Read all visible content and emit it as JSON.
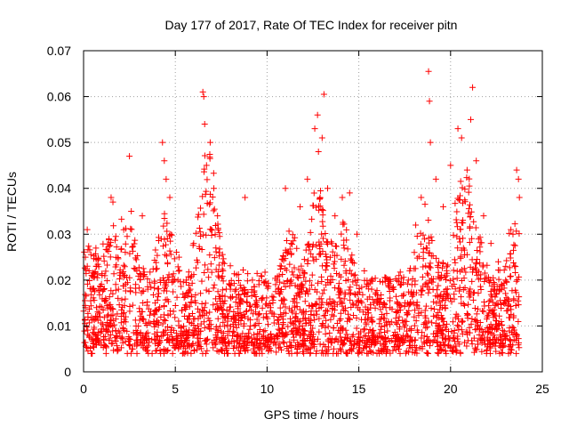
{
  "chart_data": {
    "type": "scatter",
    "title": "Day 177 of 2017, Rate Of TEC Index for receiver pitn",
    "xlabel": "GPS time / hours",
    "ylabel": "ROTI / TECUs",
    "xlim": [
      0,
      25
    ],
    "ylim": [
      0,
      0.07
    ],
    "x_ticks": [
      0,
      5,
      10,
      15,
      20,
      25
    ],
    "y_ticks": [
      0,
      0.01,
      0.02,
      0.03,
      0.04,
      0.05,
      0.06,
      0.07
    ],
    "x_tick_labels": [
      "0",
      "5",
      "10",
      "15",
      "20",
      "25"
    ],
    "y_tick_labels": [
      "0",
      "0.01",
      "0.02",
      "0.03",
      "0.04",
      "0.05",
      "0.06",
      "0.07"
    ],
    "grid": true,
    "marker": "plus",
    "marker_color": "#ff0000",
    "series": [
      {
        "name": "ROTI",
        "points": [
          [
            0.1,
            0.025
          ],
          [
            0.2,
            0.031
          ],
          [
            0.3,
            0.022
          ],
          [
            0.5,
            0.018
          ],
          [
            0.7,
            0.014
          ],
          [
            0.9,
            0.012
          ],
          [
            1.2,
            0.016
          ],
          [
            1.5,
            0.038
          ],
          [
            1.6,
            0.037
          ],
          [
            1.9,
            0.018
          ],
          [
            2.3,
            0.012
          ],
          [
            2.5,
            0.047
          ],
          [
            2.6,
            0.035
          ],
          [
            2.9,
            0.022
          ],
          [
            3.2,
            0.034
          ],
          [
            3.5,
            0.018
          ],
          [
            3.9,
            0.015
          ],
          [
            4.3,
            0.05
          ],
          [
            4.4,
            0.046
          ],
          [
            4.5,
            0.042
          ],
          [
            4.7,
            0.038
          ],
          [
            5.2,
            0.025
          ],
          [
            5.6,
            0.02
          ],
          [
            6.0,
            0.028
          ],
          [
            6.5,
            0.061
          ],
          [
            6.55,
            0.06
          ],
          [
            6.6,
            0.054
          ],
          [
            6.7,
            0.045
          ],
          [
            6.9,
            0.05
          ],
          [
            7.1,
            0.04
          ],
          [
            7.3,
            0.034
          ],
          [
            7.6,
            0.022
          ],
          [
            8.0,
            0.018
          ],
          [
            8.5,
            0.015
          ],
          [
            8.8,
            0.038
          ],
          [
            9.2,
            0.02
          ],
          [
            9.7,
            0.016
          ],
          [
            10.2,
            0.014
          ],
          [
            10.6,
            0.018
          ],
          [
            11.0,
            0.04
          ],
          [
            11.3,
            0.028
          ],
          [
            11.8,
            0.036
          ],
          [
            12.2,
            0.042
          ],
          [
            12.6,
            0.053
          ],
          [
            12.75,
            0.056
          ],
          [
            12.8,
            0.048
          ],
          [
            13.0,
            0.051
          ],
          [
            13.1,
            0.0605
          ],
          [
            13.3,
            0.04
          ],
          [
            13.7,
            0.034
          ],
          [
            14.1,
            0.038
          ],
          [
            14.5,
            0.039
          ],
          [
            14.9,
            0.03
          ],
          [
            15.3,
            0.022
          ],
          [
            15.7,
            0.018
          ],
          [
            16.2,
            0.016
          ],
          [
            16.7,
            0.014
          ],
          [
            17.2,
            0.012
          ],
          [
            17.7,
            0.02
          ],
          [
            18.1,
            0.032
          ],
          [
            18.4,
            0.038
          ],
          [
            18.8,
            0.0655
          ],
          [
            18.85,
            0.059
          ],
          [
            18.9,
            0.05
          ],
          [
            19.2,
            0.042
          ],
          [
            19.6,
            0.036
          ],
          [
            20.0,
            0.045
          ],
          [
            20.4,
            0.053
          ],
          [
            20.6,
            0.051
          ],
          [
            20.9,
            0.044
          ],
          [
            21.1,
            0.055
          ],
          [
            21.2,
            0.062
          ],
          [
            21.4,
            0.046
          ],
          [
            21.8,
            0.034
          ],
          [
            22.2,
            0.028
          ],
          [
            22.6,
            0.024
          ],
          [
            23.0,
            0.02
          ],
          [
            23.4,
            0.03
          ],
          [
            23.6,
            0.044
          ],
          [
            23.7,
            0.042
          ],
          [
            23.75,
            0.038
          ]
        ]
      }
    ]
  }
}
